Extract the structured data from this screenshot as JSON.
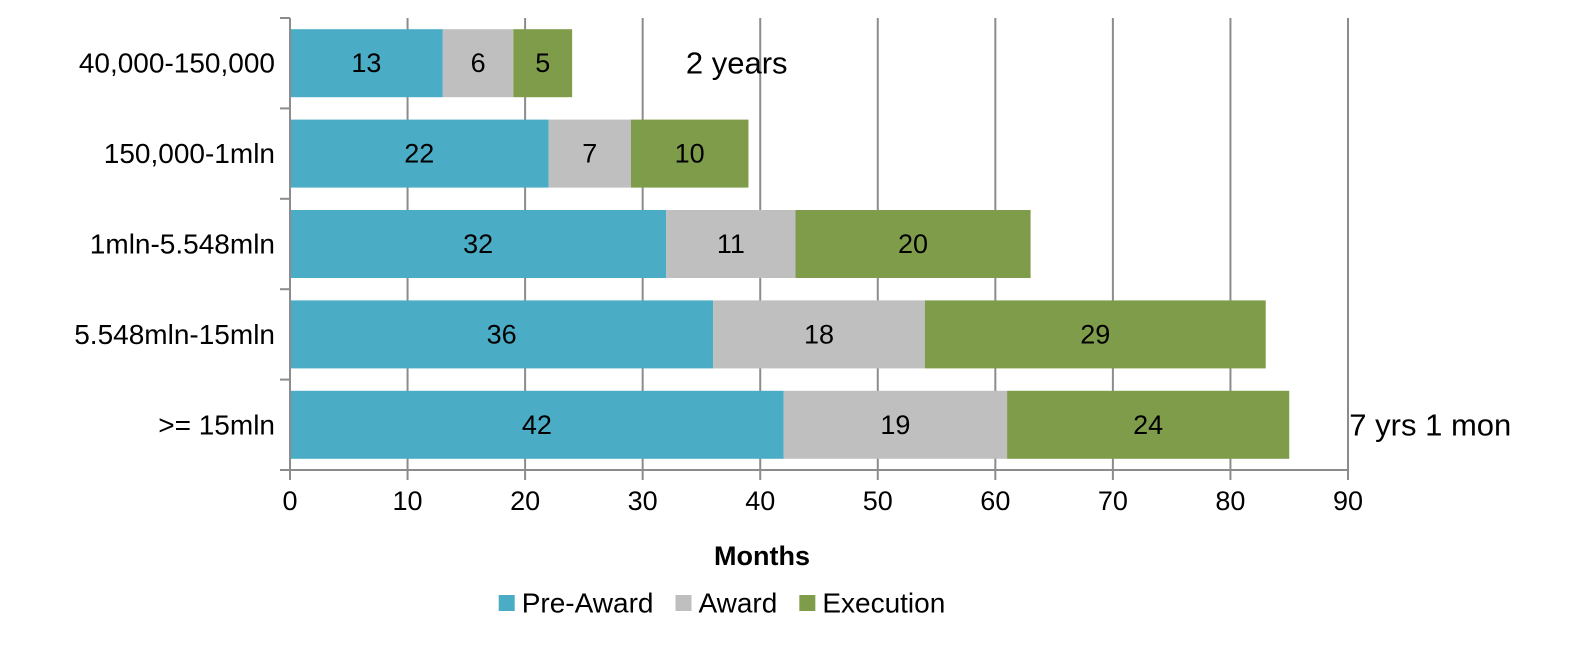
{
  "chart_data": {
    "type": "bar",
    "orientation": "horizontal",
    "stacked": true,
    "title": "",
    "categories": [
      "40,000-150,000",
      "150,000-1mln",
      "1mln-5.548mln",
      "5.548mln-15mln",
      ">= 15mln"
    ],
    "series": [
      {
        "name": "Pre-Award",
        "color": "#4BACC6",
        "values": [
          13,
          22,
          32,
          36,
          42
        ]
      },
      {
        "name": "Award",
        "color": "#BFBFBF",
        "values": [
          6,
          7,
          11,
          18,
          19
        ]
      },
      {
        "name": "Execution",
        "color": "#7F9C4A",
        "values": [
          5,
          10,
          20,
          29,
          24
        ]
      }
    ],
    "xlabel": "Months",
    "ylabel": "",
    "xlim": [
      0,
      90
    ],
    "xticks": [
      0,
      10,
      20,
      30,
      40,
      50,
      60,
      70,
      80,
      90
    ],
    "grid": true,
    "legend_position": "bottom",
    "annotations": [
      {
        "text": "2 years",
        "category": "40,000-150,000",
        "x": 38
      },
      {
        "text": "7 yrs 1 mon",
        "category": ">= 15mln",
        "x": 97
      }
    ]
  }
}
